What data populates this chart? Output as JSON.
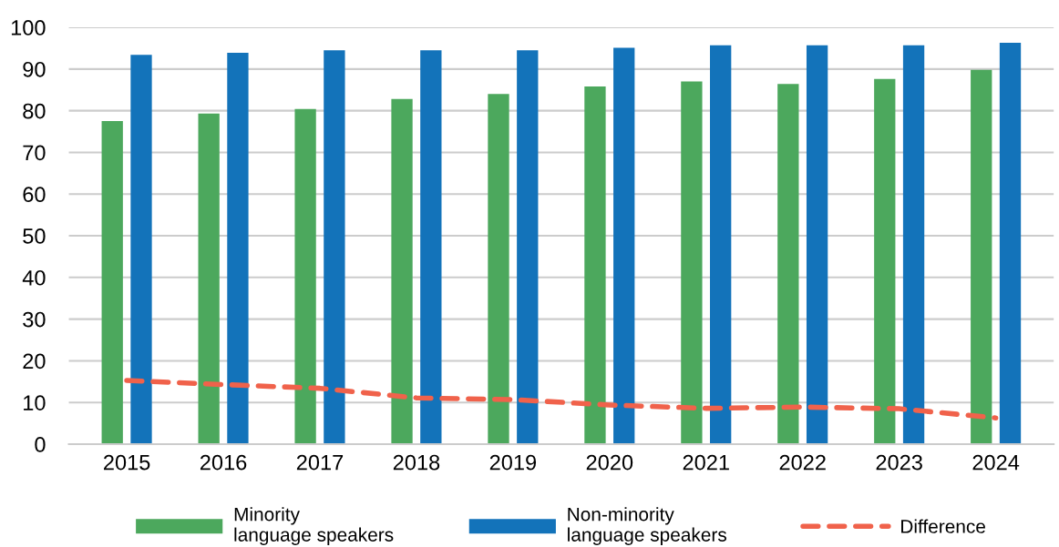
{
  "chart_data": {
    "type": "bar",
    "categories": [
      "2015",
      "2016",
      "2017",
      "2018",
      "2019",
      "2020",
      "2021",
      "2022",
      "2023",
      "2024"
    ],
    "series": [
      {
        "name": "Minority\nlanguage speakers",
        "color": "#4ca85d",
        "values": [
          77.5,
          79.3,
          80.4,
          82.8,
          84.0,
          85.8,
          87.0,
          86.4,
          87.6,
          89.8
        ]
      },
      {
        "name": "Non-minority\nlanguage speakers",
        "color": "#1373ba",
        "values": [
          93.4,
          93.9,
          94.5,
          94.5,
          94.5,
          95.1,
          95.7,
          95.7,
          95.7,
          96.3
        ]
      },
      {
        "name": "Difference",
        "type": "line",
        "color": "#f0624b",
        "line_style": "dashed",
        "values": [
          15.3,
          14.3,
          13.4,
          11.1,
          10.7,
          9.4,
          8.6,
          8.9,
          8.5,
          6.3
        ]
      }
    ],
    "ylim": [
      0,
      100
    ],
    "yticks": [
      0,
      10,
      20,
      30,
      40,
      50,
      60,
      70,
      80,
      90,
      100
    ],
    "grid": "y",
    "legend": "bottom"
  }
}
